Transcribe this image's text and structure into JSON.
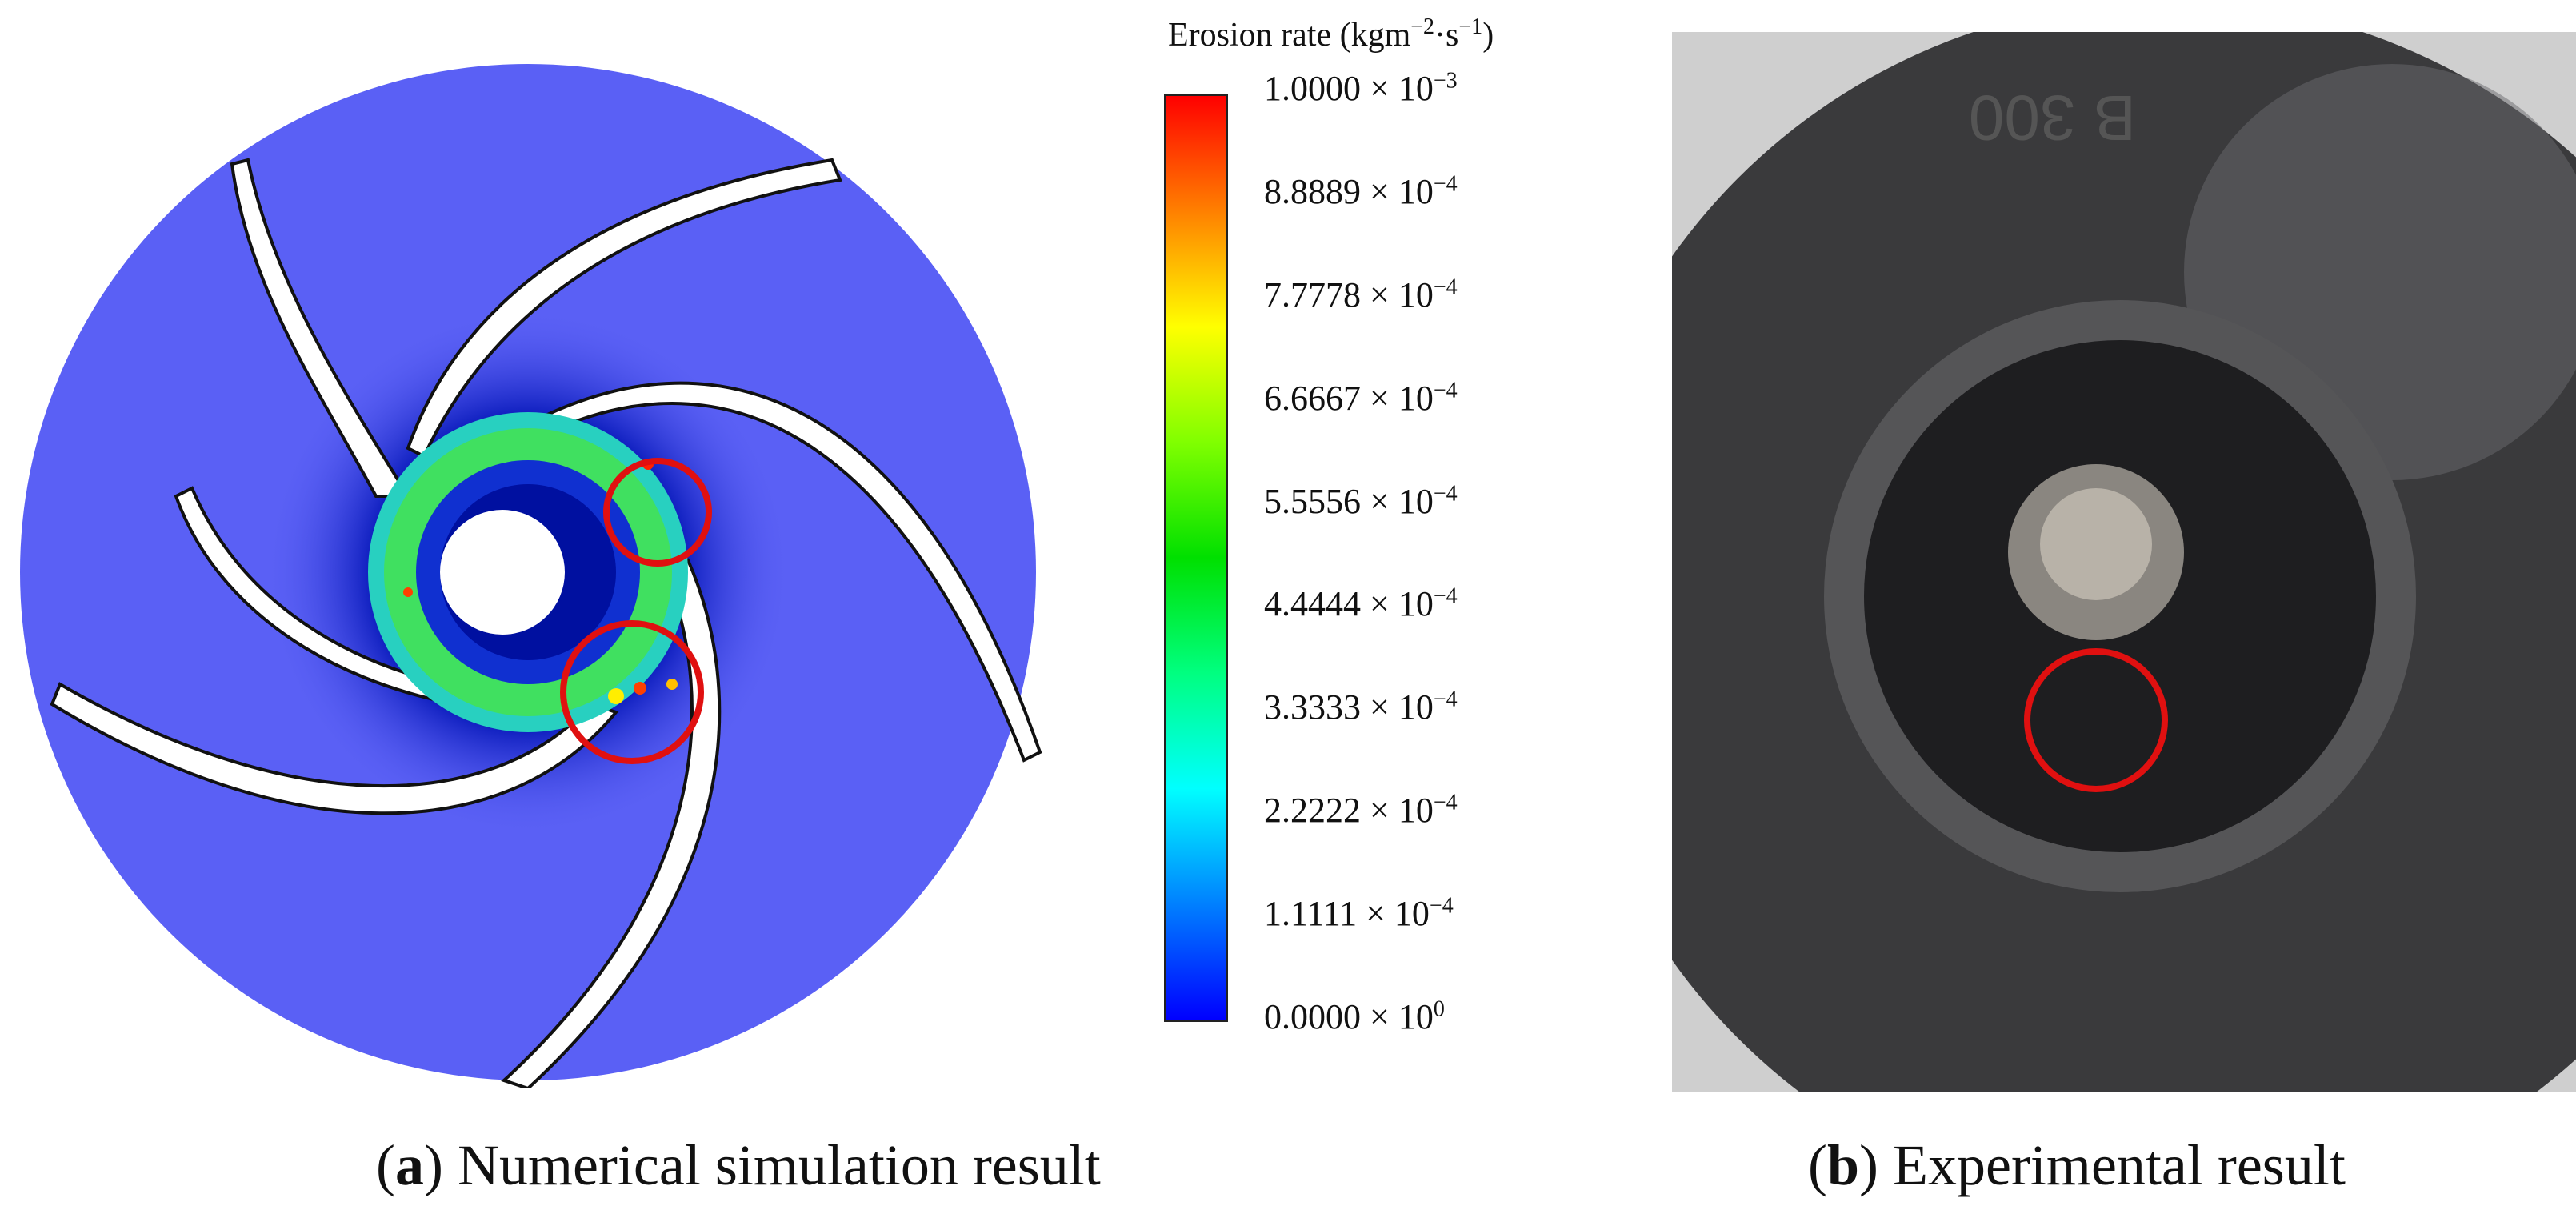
{
  "figure": {
    "colorbar": {
      "title": "Erosion rate (kgm−2·s−1)",
      "title_main": "Erosion rate (kgm",
      "title_exp1": "−2",
      "title_mid": "·s",
      "title_exp2": "−1",
      "title_close": ")",
      "ticks": [
        {
          "mant": "1.0000 × 10",
          "exp": "−3"
        },
        {
          "mant": "8.8889 × 10",
          "exp": "−4"
        },
        {
          "mant": "7.7778 × 10",
          "exp": "−4"
        },
        {
          "mant": "6.6667 × 10",
          "exp": "−4"
        },
        {
          "mant": "5.5556 × 10",
          "exp": "−4"
        },
        {
          "mant": "4.4444 × 10",
          "exp": "−4"
        },
        {
          "mant": "3.3333 × 10",
          "exp": "−4"
        },
        {
          "mant": "2.2222 × 10",
          "exp": "−4"
        },
        {
          "mant": "1.1111 × 10",
          "exp": "−4"
        },
        {
          "mant": "0.0000 × 10",
          "exp": "0"
        }
      ],
      "gradient_colors": [
        "#ff0000",
        "#ff8000",
        "#ffff00",
        "#80ff00",
        "#00e000",
        "#00ff80",
        "#00ffff",
        "#0080ff",
        "#0000ff"
      ]
    },
    "captions": {
      "a_letter": "a",
      "a_text": " Numerical simulation result",
      "b_letter": "b",
      "b_text": " Experimental result"
    },
    "photo": {
      "stamp_text": "B 300"
    },
    "colors": {
      "impeller_blue": "#5a60f5",
      "highlight_red": "#e01010"
    }
  }
}
